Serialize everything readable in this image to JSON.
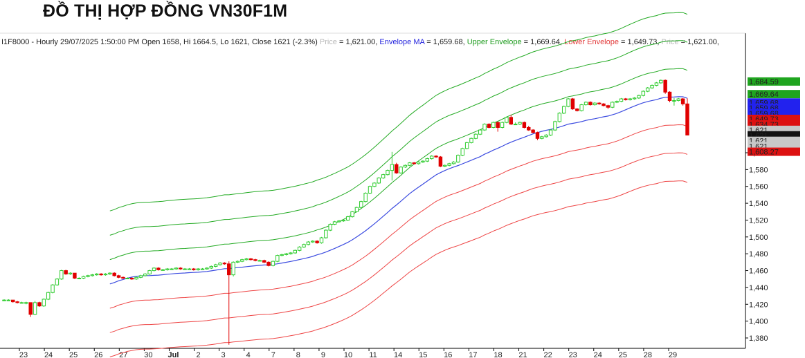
{
  "title": "ĐỒ THỊ HỢP ĐỒNG VN30F1M",
  "info": {
    "prefix": "I1F8000 - Hourly 29/07/2025 1:50:00 PM Open 1658, Hi 1664.5, Lo 1621, Close 1621 (-2.3%)",
    "price1_label": "Price",
    "price1_value": " = 1,621.00,",
    "env_ma_label": "Envelope MA",
    "env_ma_value": " = 1,659.68,",
    "upper_label": "Upper Envelope",
    "upper_value": " = 1,669.64,",
    "lower_label": "Lower Envelope",
    "lower_value": " = 1,649.73,",
    "price2_label": "Price",
    "price2_value": " = 1,621.00,"
  },
  "colors": {
    "up_candle": "#2ecc2e",
    "down_candle": "#e00000",
    "ma": "#3b4be0",
    "upper": "#22aa22",
    "lower": "#ee4444",
    "axis": "#000000"
  },
  "chart_data": {
    "type": "candlestick",
    "title": "",
    "xlabel": "",
    "ylabel": "",
    "ylim": [
      1368,
      1690
    ],
    "yticks": [
      1380,
      1400,
      1420,
      1440,
      1460,
      1480,
      1500,
      1520,
      1540,
      1560,
      1580,
      1600
    ],
    "ytick_labels": [
      "1,380",
      "1,400",
      "1,420",
      "1,440",
      "1,460",
      "1,480",
      "1,500",
      "1,520",
      "1,540",
      "1,560",
      "1,580",
      "1,600"
    ],
    "x_ticks": [
      "23",
      "24",
      "25",
      "26",
      "27",
      "30",
      "Jul",
      "2",
      "3",
      "4",
      "7",
      "8",
      "9",
      "10",
      "11",
      "14",
      "15",
      "16",
      "17",
      "18",
      "21",
      "22",
      "23",
      "24",
      "25",
      "28",
      "29"
    ],
    "close_series": [
      1425,
      1425,
      1423,
      1422,
      1422,
      1422,
      1408,
      1422,
      1418,
      1426,
      1434,
      1443,
      1450,
      1460,
      1456,
      1457,
      1451,
      1451,
      1453,
      1454,
      1455,
      1456,
      1455,
      1456,
      1457,
      1454,
      1452,
      1451,
      1451,
      1450,
      1452,
      1454,
      1456,
      1460,
      1463,
      1461,
      1461,
      1462,
      1462,
      1463,
      1462,
      1462,
      1462,
      1461,
      1462,
      1462,
      1463,
      1465,
      1467,
      1469,
      1468,
      1455,
      1470,
      1471,
      1473,
      1474,
      1473,
      1472,
      1472,
      1470,
      1466,
      1471,
      1478,
      1479,
      1480,
      1481,
      1484,
      1488,
      1491,
      1494,
      1495,
      1493,
      1499,
      1508,
      1515,
      1518,
      1519,
      1520,
      1524,
      1530,
      1535,
      1542,
      1552,
      1560,
      1564,
      1570,
      1574,
      1579,
      1586,
      1576,
      1583,
      1585,
      1588,
      1587,
      1589,
      1590,
      1593,
      1596,
      1595,
      1584,
      1585,
      1587,
      1589,
      1597,
      1605,
      1612,
      1617,
      1622,
      1627,
      1634,
      1630,
      1636,
      1630,
      1636,
      1642,
      1634,
      1634,
      1636,
      1630,
      1627,
      1624,
      1617,
      1619,
      1621,
      1627,
      1637,
      1647,
      1655,
      1664,
      1652,
      1650,
      1657,
      1660,
      1657,
      1659,
      1658,
      1656,
      1654,
      1660,
      1661,
      1664,
      1663,
      1664,
      1665,
      1668,
      1673,
      1677,
      1680,
      1683,
      1686,
      1672,
      1662,
      1662,
      1664,
      1658,
      1621
    ],
    "candles": [
      {
        "o": 1425,
        "h": 1426,
        "l": 1424,
        "c": 1425
      },
      {
        "o": 1425,
        "h": 1426,
        "l": 1424,
        "c": 1425
      },
      {
        "o": 1425,
        "h": 1425,
        "l": 1422,
        "c": 1423
      },
      {
        "o": 1423,
        "h": 1424,
        "l": 1421,
        "c": 1422
      },
      {
        "o": 1422,
        "h": 1423,
        "l": 1421,
        "c": 1422
      },
      {
        "o": 1422,
        "h": 1423,
        "l": 1420,
        "c": 1422
      },
      {
        "o": 1422,
        "h": 1422,
        "l": 1405,
        "c": 1408
      },
      {
        "o": 1408,
        "h": 1424,
        "l": 1407,
        "c": 1422
      },
      {
        "o": 1422,
        "h": 1423,
        "l": 1417,
        "c": 1418
      },
      {
        "o": 1418,
        "h": 1427,
        "l": 1417,
        "c": 1426
      },
      {
        "o": 1426,
        "h": 1435,
        "l": 1425,
        "c": 1434
      },
      {
        "o": 1434,
        "h": 1444,
        "l": 1433,
        "c": 1443
      },
      {
        "o": 1443,
        "h": 1451,
        "l": 1442,
        "c": 1450
      },
      {
        "o": 1450,
        "h": 1461,
        "l": 1449,
        "c": 1460
      },
      {
        "o": 1460,
        "h": 1461,
        "l": 1455,
        "c": 1456
      },
      {
        "o": 1456,
        "h": 1458,
        "l": 1455,
        "c": 1457
      },
      {
        "o": 1457,
        "h": 1457,
        "l": 1450,
        "c": 1451
      },
      {
        "o": 1451,
        "h": 1452,
        "l": 1450,
        "c": 1451
      },
      {
        "o": 1451,
        "h": 1454,
        "l": 1450,
        "c": 1453
      },
      {
        "o": 1453,
        "h": 1455,
        "l": 1452,
        "c": 1454
      },
      {
        "o": 1454,
        "h": 1456,
        "l": 1453,
        "c": 1455
      },
      {
        "o": 1455,
        "h": 1457,
        "l": 1454,
        "c": 1456
      },
      {
        "o": 1456,
        "h": 1457,
        "l": 1454,
        "c": 1455
      },
      {
        "o": 1455,
        "h": 1457,
        "l": 1454,
        "c": 1456
      },
      {
        "o": 1456,
        "h": 1458,
        "l": 1455,
        "c": 1457
      },
      {
        "o": 1457,
        "h": 1458,
        "l": 1453,
        "c": 1454
      },
      {
        "o": 1454,
        "h": 1455,
        "l": 1451,
        "c": 1452
      },
      {
        "o": 1452,
        "h": 1453,
        "l": 1450,
        "c": 1451
      },
      {
        "o": 1451,
        "h": 1452,
        "l": 1450,
        "c": 1451
      },
      {
        "o": 1451,
        "h": 1452,
        "l": 1449,
        "c": 1450
      },
      {
        "o": 1450,
        "h": 1453,
        "l": 1449,
        "c": 1452
      },
      {
        "o": 1452,
        "h": 1455,
        "l": 1451,
        "c": 1454
      },
      {
        "o": 1454,
        "h": 1457,
        "l": 1453,
        "c": 1456
      },
      {
        "o": 1456,
        "h": 1461,
        "l": 1455,
        "c": 1460
      },
      {
        "o": 1460,
        "h": 1464,
        "l": 1459,
        "c": 1463
      },
      {
        "o": 1463,
        "h": 1464,
        "l": 1460,
        "c": 1461
      },
      {
        "o": 1461,
        "h": 1462,
        "l": 1460,
        "c": 1461
      },
      {
        "o": 1461,
        "h": 1463,
        "l": 1460,
        "c": 1462
      },
      {
        "o": 1462,
        "h": 1463,
        "l": 1461,
        "c": 1462
      },
      {
        "o": 1462,
        "h": 1464,
        "l": 1461,
        "c": 1463
      },
      {
        "o": 1463,
        "h": 1464,
        "l": 1461,
        "c": 1462
      },
      {
        "o": 1462,
        "h": 1463,
        "l": 1461,
        "c": 1462
      },
      {
        "o": 1462,
        "h": 1463,
        "l": 1461,
        "c": 1462
      },
      {
        "o": 1462,
        "h": 1463,
        "l": 1460,
        "c": 1461
      },
      {
        "o": 1461,
        "h": 1463,
        "l": 1460,
        "c": 1462
      },
      {
        "o": 1462,
        "h": 1463,
        "l": 1461,
        "c": 1462
      },
      {
        "o": 1462,
        "h": 1464,
        "l": 1461,
        "c": 1463
      },
      {
        "o": 1463,
        "h": 1466,
        "l": 1462,
        "c": 1465
      },
      {
        "o": 1465,
        "h": 1468,
        "l": 1464,
        "c": 1467
      },
      {
        "o": 1467,
        "h": 1470,
        "l": 1466,
        "c": 1469
      },
      {
        "o": 1469,
        "h": 1470,
        "l": 1467,
        "c": 1468
      },
      {
        "o": 1468,
        "h": 1471,
        "l": 1372,
        "c": 1455
      },
      {
        "o": 1455,
        "h": 1471,
        "l": 1453,
        "c": 1470
      },
      {
        "o": 1470,
        "h": 1472,
        "l": 1469,
        "c": 1471
      },
      {
        "o": 1471,
        "h": 1474,
        "l": 1470,
        "c": 1473
      },
      {
        "o": 1473,
        "h": 1475,
        "l": 1472,
        "c": 1474
      },
      {
        "o": 1474,
        "h": 1475,
        "l": 1472,
        "c": 1473
      },
      {
        "o": 1473,
        "h": 1474,
        "l": 1471,
        "c": 1472
      },
      {
        "o": 1472,
        "h": 1473,
        "l": 1471,
        "c": 1472
      },
      {
        "o": 1472,
        "h": 1473,
        "l": 1469,
        "c": 1470
      },
      {
        "o": 1470,
        "h": 1471,
        "l": 1465,
        "c": 1466
      },
      {
        "o": 1466,
        "h": 1472,
        "l": 1465,
        "c": 1471
      },
      {
        "o": 1471,
        "h": 1479,
        "l": 1470,
        "c": 1478
      },
      {
        "o": 1478,
        "h": 1480,
        "l": 1477,
        "c": 1479
      },
      {
        "o": 1479,
        "h": 1481,
        "l": 1478,
        "c": 1480
      },
      {
        "o": 1480,
        "h": 1482,
        "l": 1479,
        "c": 1481
      },
      {
        "o": 1481,
        "h": 1485,
        "l": 1480,
        "c": 1484
      },
      {
        "o": 1484,
        "h": 1489,
        "l": 1483,
        "c": 1488
      },
      {
        "o": 1488,
        "h": 1492,
        "l": 1487,
        "c": 1491
      },
      {
        "o": 1491,
        "h": 1495,
        "l": 1490,
        "c": 1494
      },
      {
        "o": 1494,
        "h": 1496,
        "l": 1493,
        "c": 1495
      },
      {
        "o": 1495,
        "h": 1496,
        "l": 1492,
        "c": 1493
      },
      {
        "o": 1493,
        "h": 1500,
        "l": 1492,
        "c": 1499
      },
      {
        "o": 1499,
        "h": 1509,
        "l": 1498,
        "c": 1508
      },
      {
        "o": 1508,
        "h": 1516,
        "l": 1507,
        "c": 1515
      },
      {
        "o": 1515,
        "h": 1519,
        "l": 1514,
        "c": 1518
      },
      {
        "o": 1518,
        "h": 1520,
        "l": 1517,
        "c": 1519
      },
      {
        "o": 1519,
        "h": 1521,
        "l": 1518,
        "c": 1520
      },
      {
        "o": 1520,
        "h": 1525,
        "l": 1519,
        "c": 1524
      },
      {
        "o": 1524,
        "h": 1531,
        "l": 1523,
        "c": 1530
      },
      {
        "o": 1530,
        "h": 1536,
        "l": 1529,
        "c": 1535
      },
      {
        "o": 1535,
        "h": 1543,
        "l": 1534,
        "c": 1542
      },
      {
        "o": 1542,
        "h": 1553,
        "l": 1541,
        "c": 1552
      },
      {
        "o": 1552,
        "h": 1561,
        "l": 1551,
        "c": 1560
      },
      {
        "o": 1560,
        "h": 1565,
        "l": 1559,
        "c": 1564
      },
      {
        "o": 1564,
        "h": 1571,
        "l": 1563,
        "c": 1570
      },
      {
        "o": 1570,
        "h": 1575,
        "l": 1569,
        "c": 1574
      },
      {
        "o": 1574,
        "h": 1580,
        "l": 1573,
        "c": 1579
      },
      {
        "o": 1579,
        "h": 1601,
        "l": 1567,
        "c": 1586
      },
      {
        "o": 1586,
        "h": 1588,
        "l": 1575,
        "c": 1576
      },
      {
        "o": 1576,
        "h": 1584,
        "l": 1575,
        "c": 1583
      },
      {
        "o": 1583,
        "h": 1586,
        "l": 1582,
        "c": 1585
      },
      {
        "o": 1585,
        "h": 1589,
        "l": 1584,
        "c": 1588
      },
      {
        "o": 1588,
        "h": 1589,
        "l": 1586,
        "c": 1587
      },
      {
        "o": 1587,
        "h": 1590,
        "l": 1586,
        "c": 1589
      },
      {
        "o": 1589,
        "h": 1591,
        "l": 1588,
        "c": 1590
      },
      {
        "o": 1590,
        "h": 1594,
        "l": 1589,
        "c": 1593
      },
      {
        "o": 1593,
        "h": 1597,
        "l": 1592,
        "c": 1596
      },
      {
        "o": 1596,
        "h": 1597,
        "l": 1594,
        "c": 1595
      },
      {
        "o": 1595,
        "h": 1596,
        "l": 1583,
        "c": 1584
      },
      {
        "o": 1584,
        "h": 1586,
        "l": 1583,
        "c": 1585
      },
      {
        "o": 1585,
        "h": 1588,
        "l": 1584,
        "c": 1587
      },
      {
        "o": 1587,
        "h": 1590,
        "l": 1586,
        "c": 1589
      },
      {
        "o": 1589,
        "h": 1598,
        "l": 1588,
        "c": 1597
      },
      {
        "o": 1597,
        "h": 1606,
        "l": 1596,
        "c": 1605
      },
      {
        "o": 1605,
        "h": 1613,
        "l": 1604,
        "c": 1612
      },
      {
        "o": 1612,
        "h": 1618,
        "l": 1611,
        "c": 1617
      },
      {
        "o": 1617,
        "h": 1623,
        "l": 1616,
        "c": 1622
      },
      {
        "o": 1622,
        "h": 1628,
        "l": 1621,
        "c": 1627
      },
      {
        "o": 1627,
        "h": 1635,
        "l": 1626,
        "c": 1634
      },
      {
        "o": 1634,
        "h": 1635,
        "l": 1629,
        "c": 1630
      },
      {
        "o": 1630,
        "h": 1637,
        "l": 1629,
        "c": 1636
      },
      {
        "o": 1636,
        "h": 1637,
        "l": 1625,
        "c": 1630
      },
      {
        "o": 1630,
        "h": 1637,
        "l": 1629,
        "c": 1636
      },
      {
        "o": 1636,
        "h": 1643,
        "l": 1635,
        "c": 1642
      },
      {
        "o": 1642,
        "h": 1645,
        "l": 1633,
        "c": 1634
      },
      {
        "o": 1634,
        "h": 1636,
        "l": 1633,
        "c": 1634
      },
      {
        "o": 1634,
        "h": 1637,
        "l": 1633,
        "c": 1636
      },
      {
        "o": 1636,
        "h": 1637,
        "l": 1629,
        "c": 1630
      },
      {
        "o": 1630,
        "h": 1632,
        "l": 1626,
        "c": 1627
      },
      {
        "o": 1627,
        "h": 1628,
        "l": 1623,
        "c": 1624
      },
      {
        "o": 1624,
        "h": 1625,
        "l": 1615,
        "c": 1617
      },
      {
        "o": 1617,
        "h": 1620,
        "l": 1616,
        "c": 1619
      },
      {
        "o": 1619,
        "h": 1622,
        "l": 1618,
        "c": 1621
      },
      {
        "o": 1621,
        "h": 1628,
        "l": 1620,
        "c": 1627
      },
      {
        "o": 1627,
        "h": 1638,
        "l": 1626,
        "c": 1637
      },
      {
        "o": 1637,
        "h": 1648,
        "l": 1636,
        "c": 1647
      },
      {
        "o": 1647,
        "h": 1656,
        "l": 1646,
        "c": 1655
      },
      {
        "o": 1655,
        "h": 1665,
        "l": 1654,
        "c": 1664
      },
      {
        "o": 1664,
        "h": 1665,
        "l": 1651,
        "c": 1652
      },
      {
        "o": 1652,
        "h": 1653,
        "l": 1649,
        "c": 1650
      },
      {
        "o": 1650,
        "h": 1658,
        "l": 1649,
        "c": 1657
      },
      {
        "o": 1657,
        "h": 1661,
        "l": 1656,
        "c": 1660
      },
      {
        "o": 1660,
        "h": 1661,
        "l": 1656,
        "c": 1657
      },
      {
        "o": 1657,
        "h": 1660,
        "l": 1656,
        "c": 1659
      },
      {
        "o": 1659,
        "h": 1660,
        "l": 1657,
        "c": 1658
      },
      {
        "o": 1658,
        "h": 1659,
        "l": 1655,
        "c": 1656
      },
      {
        "o": 1656,
        "h": 1657,
        "l": 1652,
        "c": 1654
      },
      {
        "o": 1654,
        "h": 1661,
        "l": 1653,
        "c": 1660
      },
      {
        "o": 1660,
        "h": 1662,
        "l": 1659,
        "c": 1661
      },
      {
        "o": 1661,
        "h": 1665,
        "l": 1660,
        "c": 1664
      },
      {
        "o": 1664,
        "h": 1665,
        "l": 1662,
        "c": 1663
      },
      {
        "o": 1663,
        "h": 1665,
        "l": 1662,
        "c": 1664
      },
      {
        "o": 1664,
        "h": 1666,
        "l": 1663,
        "c": 1665
      },
      {
        "o": 1665,
        "h": 1669,
        "l": 1664,
        "c": 1668
      },
      {
        "o": 1668,
        "h": 1674,
        "l": 1667,
        "c": 1673
      },
      {
        "o": 1673,
        "h": 1678,
        "l": 1672,
        "c": 1677
      },
      {
        "o": 1677,
        "h": 1681,
        "l": 1676,
        "c": 1680
      },
      {
        "o": 1680,
        "h": 1684,
        "l": 1679,
        "c": 1683
      },
      {
        "o": 1683,
        "h": 1687,
        "l": 1682,
        "c": 1686
      },
      {
        "o": 1686,
        "h": 1687,
        "l": 1670,
        "c": 1672
      },
      {
        "o": 1672,
        "h": 1673,
        "l": 1660,
        "c": 1662
      },
      {
        "o": 1662,
        "h": 1665,
        "l": 1656,
        "c": 1662
      },
      {
        "o": 1662,
        "h": 1665,
        "l": 1661,
        "c": 1664
      },
      {
        "o": 1664,
        "h": 1665,
        "l": 1656,
        "c": 1658
      },
      {
        "o": 1658,
        "h": 1664.5,
        "l": 1621,
        "c": 1621
      }
    ],
    "envelope": {
      "ma_start_index": 24,
      "ma_window": 20,
      "bands_pct": [
        2,
        4,
        6
      ],
      "upper_label": "Upper Envelope",
      "lower_label": "Lower Envelope",
      "ma_label": "Envelope MA"
    },
    "price_tags": [
      {
        "label": "1,684.59",
        "value": 1684.59,
        "bg": "#1fa51f",
        "fg": "#ffffff"
      },
      {
        "label": "1,669.64",
        "value": 1669.64,
        "bg": "#1fa51f",
        "fg": "#ffffff"
      },
      {
        "label": "1,659.68",
        "value": 1659.68,
        "bg": "#2222ee",
        "fg": "#ffffff"
      },
      {
        "label": "1,659.68",
        "value": 1653.2,
        "bg": "#2222ee",
        "fg": "#ffffff"
      },
      {
        "label": "1,659.68",
        "value": 1646.7,
        "bg": "#2222ee",
        "fg": "#ffffff"
      },
      {
        "label": "1,649.73",
        "value": 1640.2,
        "bg": "#dd1111",
        "fg": "#ffffff"
      },
      {
        "label": "1,634.73",
        "value": 1633.7,
        "bg": "#dd1111",
        "fg": "#ffffff"
      },
      {
        "label": "1,621",
        "value": 1627.2,
        "bg": "#c8c8c8",
        "fg": "#000000"
      },
      {
        "label": "1,621",
        "value": 1620.7,
        "bg": "#111111",
        "fg": "#ffffff"
      },
      {
        "label": "1,621",
        "value": 1614.2,
        "bg": "#c8c8c8",
        "fg": "#000000"
      },
      {
        "label": "1,621",
        "value": 1607.7,
        "bg": "#c8c8c8",
        "fg": "#000000"
      },
      {
        "label": "1,608.27",
        "value": 1601.2,
        "bg": "#dd1111",
        "fg": "#ffffff"
      }
    ]
  }
}
